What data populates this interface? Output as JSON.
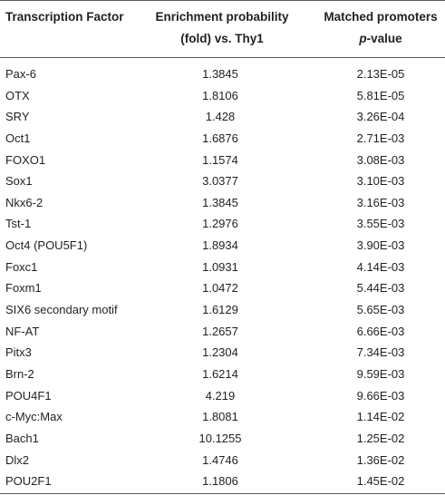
{
  "table": {
    "headers": {
      "factor": "Transcription Factor",
      "enrichment_line1": "Enrichment probability",
      "enrichment_line2": "(fold) vs. Thy1",
      "matched_line1": "Matched promoters",
      "matched_line2_italic": "p",
      "matched_line2_rest": "-value"
    },
    "rows": [
      {
        "factor": "Pax-6",
        "enrichment": "1.3845",
        "pvalue": "2.13E-05"
      },
      {
        "factor": "OTX",
        "enrichment": "1.8106",
        "pvalue": "5.81E-05"
      },
      {
        "factor": "SRY",
        "enrichment": "1.428",
        "pvalue": "3.26E-04"
      },
      {
        "factor": "Oct1",
        "enrichment": "1.6876",
        "pvalue": "2.71E-03"
      },
      {
        "factor": "FOXO1",
        "enrichment": "1.1574",
        "pvalue": "3.08E-03"
      },
      {
        "factor": "Sox1",
        "enrichment": "3.0377",
        "pvalue": "3.10E-03"
      },
      {
        "factor": "Nkx6-2",
        "enrichment": "1.3845",
        "pvalue": "3.16E-03"
      },
      {
        "factor": "Tst-1",
        "enrichment": "1.2976",
        "pvalue": "3.55E-03"
      },
      {
        "factor": "Oct4 (POU5F1)",
        "enrichment": "1.8934",
        "pvalue": "3.90E-03"
      },
      {
        "factor": "Foxc1",
        "enrichment": "1.0931",
        "pvalue": "4.14E-03"
      },
      {
        "factor": "Foxm1",
        "enrichment": "1.0472",
        "pvalue": "5.44E-03"
      },
      {
        "factor": "SIX6 secondary motif",
        "enrichment": "1.6129",
        "pvalue": "5.65E-03"
      },
      {
        "factor": "NF-AT",
        "enrichment": "1.2657",
        "pvalue": "6.66E-03"
      },
      {
        "factor": "Pitx3",
        "enrichment": "1.2304",
        "pvalue": "7.34E-03"
      },
      {
        "factor": "Brn-2",
        "enrichment": "1.6214",
        "pvalue": "9.59E-03"
      },
      {
        "factor": "POU4F1",
        "enrichment": "4.219",
        "pvalue": "9.66E-03"
      },
      {
        "factor": "c-Myc:Max",
        "enrichment": "1.8081",
        "pvalue": "1.14E-02"
      },
      {
        "factor": "Bach1",
        "enrichment": "10.1255",
        "pvalue": "1.25E-02"
      },
      {
        "factor": "Dlx2",
        "enrichment": "1.4746",
        "pvalue": "1.36E-02"
      },
      {
        "factor": "POU2F1",
        "enrichment": "1.1806",
        "pvalue": "1.45E-02"
      }
    ]
  }
}
